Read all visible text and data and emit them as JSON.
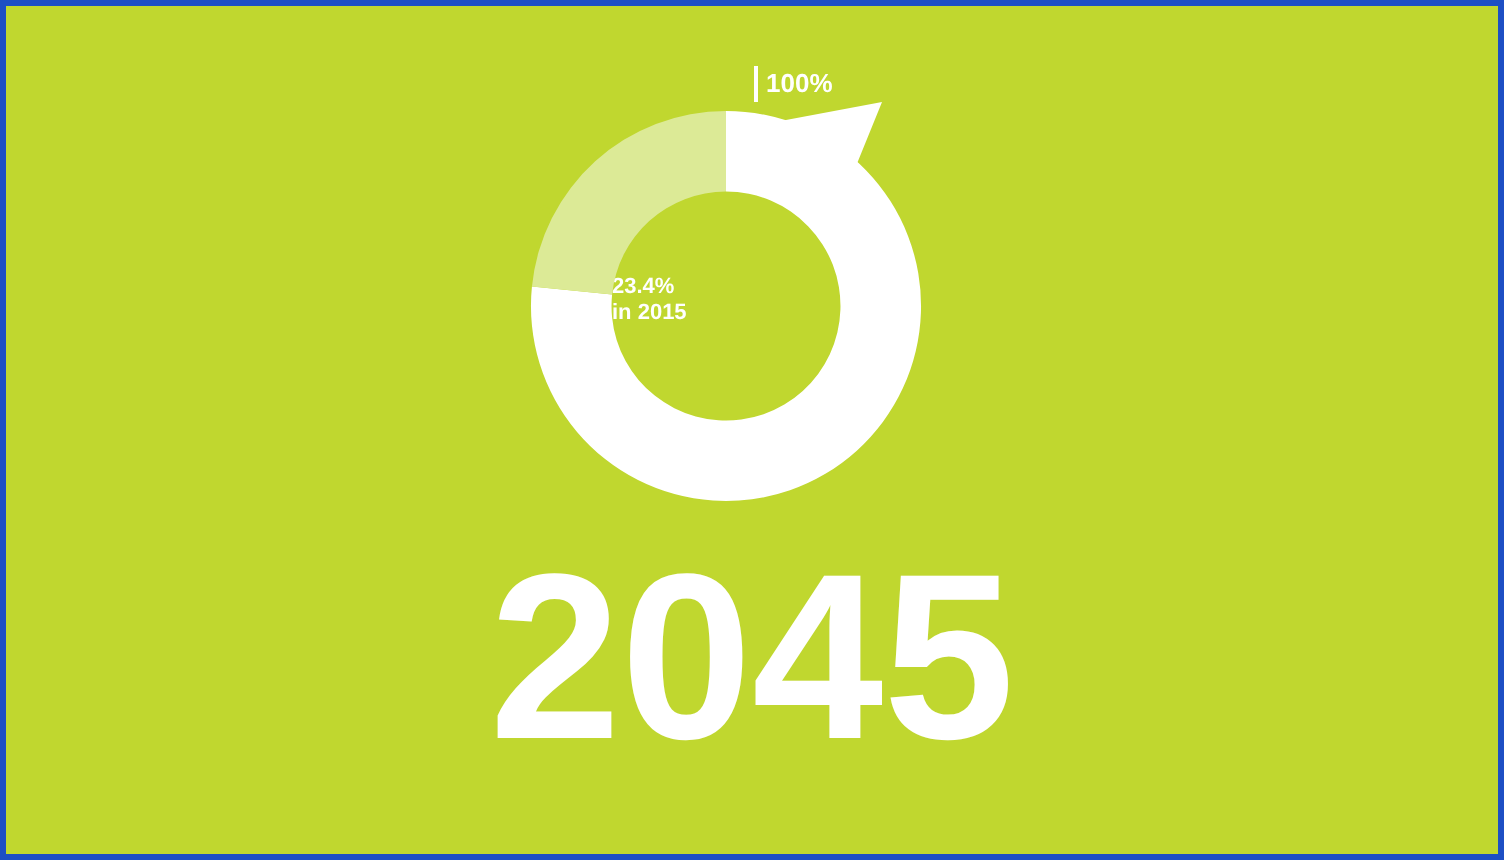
{
  "chart_data": {
    "type": "donut",
    "title": "2045",
    "categories": [
      null,
      null
    ],
    "values": [
      76.6,
      23.4
    ],
    "colors": [
      "#ffffff",
      "#dcea96"
    ],
    "annotations": [
      "100%",
      "23.4%\nin 2015"
    ]
  }
}
